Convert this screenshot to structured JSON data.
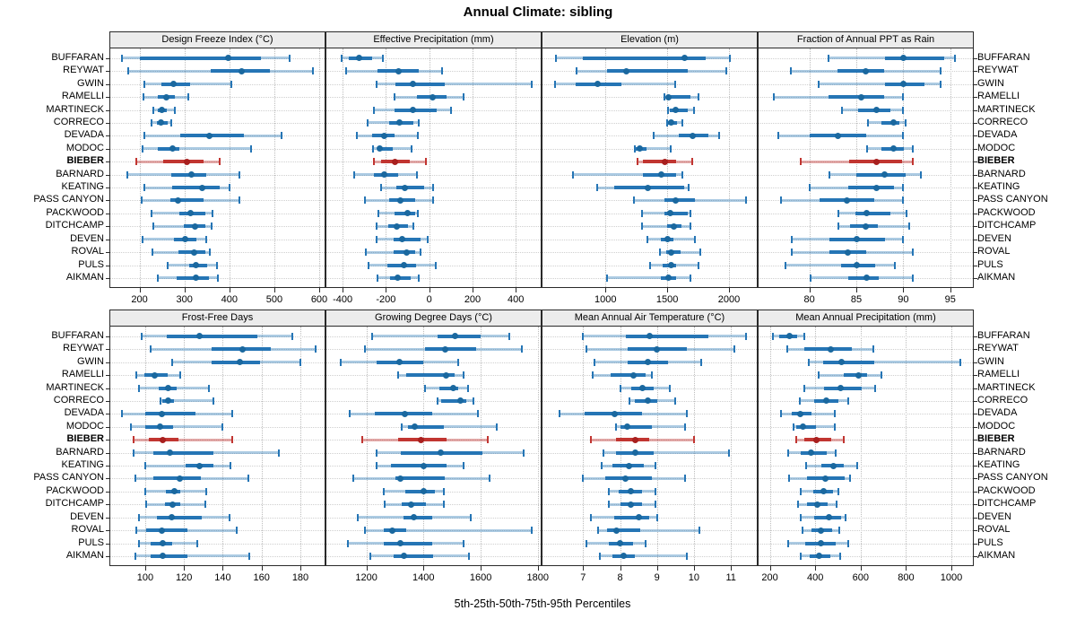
{
  "title": "Annual Climate: sibling",
  "caption": "5th-25th-50th-75th-95th Percentiles",
  "colors": {
    "series_box": "#2575b5",
    "series_dot": "#1a689f",
    "series_whisker": "rgba(37,117,181,0.38)",
    "highlight_box": "#c13531",
    "highlight_dot": "#a8201f",
    "highlight_whisker": "rgba(193,53,49,0.42)",
    "strip_bg": "#ececec",
    "grid": "#bdbdbd"
  },
  "sites": [
    "BUFFARAN",
    "REYWAT",
    "GWIN",
    "RAMELLI",
    "MARTINECK",
    "CORRECO",
    "DEVADA",
    "MODOC",
    "BIEBER",
    "BARNARD",
    "KEATING",
    "PASS CANYON",
    "PACKWOOD",
    "DITCHCAMP",
    "DEVEN",
    "ROVAL",
    "PULS",
    "AIKMAN"
  ],
  "highlight_site": "BIEBER",
  "chart_data": {
    "type": "percentile-dotplot",
    "percentiles": [
      5,
      25,
      50,
      75,
      95
    ],
    "layout_hint": "trellis 2 rows x 4 cols; shared site list on y; site labels left of col 1 and right of col 4; x axis below each panel row; dotted grid; BIEBER series highlighted red",
    "panels": [
      {
        "title": "Design Freeze Index (°C)",
        "row": 0,
        "col": 0,
        "ticks": [
          200,
          300,
          400,
          500,
          600
        ],
        "domain": [
          135,
          612
        ],
        "values": [
          [
            160,
            200,
            398,
            470,
            535
          ],
          [
            175,
            358,
            428,
            490,
            585
          ],
          [
            210,
            248,
            276,
            313,
            405
          ],
          [
            208,
            240,
            259,
            279,
            308
          ],
          [
            230,
            240,
            249,
            261,
            278
          ],
          [
            226,
            238,
            248,
            262,
            270
          ],
          [
            210,
            290,
            356,
            433,
            516
          ],
          [
            207,
            240,
            273,
            288,
            448
          ],
          [
            193,
            253,
            305,
            342,
            378
          ],
          [
            173,
            270,
            316,
            348,
            423
          ],
          [
            210,
            273,
            340,
            378,
            400
          ],
          [
            205,
            269,
            285,
            342,
            423
          ],
          [
            226,
            288,
            313,
            346,
            363
          ],
          [
            230,
            298,
            323,
            346,
            361
          ],
          [
            207,
            276,
            301,
            326,
            348
          ],
          [
            229,
            286,
            321,
            346,
            357
          ],
          [
            263,
            310,
            326,
            351,
            373
          ],
          [
            240,
            283,
            325,
            355,
            375
          ]
        ]
      },
      {
        "title": "Effective Precipitation (mm)",
        "row": 0,
        "col": 1,
        "ticks": [
          -400,
          -200,
          0,
          200,
          400
        ],
        "domain": [
          -475,
          515
        ],
        "values": [
          [
            -405,
            -370,
            -325,
            -265,
            -215
          ],
          [
            -385,
            -240,
            -140,
            -48,
            58
          ],
          [
            -245,
            -158,
            -75,
            70,
            474
          ],
          [
            -162,
            -55,
            16,
            82,
            157
          ],
          [
            -255,
            -160,
            -75,
            35,
            100
          ],
          [
            -283,
            -187,
            -138,
            -75,
            -48
          ],
          [
            -336,
            -265,
            -210,
            -158,
            -52
          ],
          [
            -258,
            -240,
            -230,
            -170,
            -82
          ],
          [
            -255,
            -224,
            -158,
            -89,
            -14
          ],
          [
            -347,
            -255,
            -210,
            -144,
            -55
          ],
          [
            -221,
            -152,
            -111,
            -25,
            19
          ],
          [
            -299,
            -187,
            -134,
            -66,
            16
          ],
          [
            -237,
            -162,
            -100,
            -66,
            -52
          ],
          [
            -244,
            -190,
            -152,
            -96,
            -75
          ],
          [
            -244,
            -166,
            -125,
            -38,
            -8
          ],
          [
            -293,
            -166,
            -104,
            -66,
            -41
          ],
          [
            -281,
            -194,
            -118,
            -59,
            30
          ],
          [
            -240,
            -183,
            -144,
            -86,
            -49
          ]
        ]
      },
      {
        "title": "Elevation (m)",
        "row": 0,
        "col": 2,
        "ticks": [
          1000,
          1500,
          2000
        ],
        "domain": [
          490,
          2225
        ],
        "values": [
          [
            600,
            815,
            1640,
            1810,
            2005
          ],
          [
            765,
            1015,
            1165,
            1670,
            1980
          ],
          [
            590,
            755,
            935,
            1125,
            1565
          ],
          [
            1475,
            1490,
            1510,
            1690,
            1750
          ],
          [
            1505,
            1520,
            1565,
            1665,
            1715
          ],
          [
            1500,
            1507,
            1532,
            1580,
            1622
          ],
          [
            1390,
            1592,
            1702,
            1836,
            1921
          ],
          [
            1237,
            1245,
            1277,
            1330,
            1525
          ],
          [
            1260,
            1300,
            1480,
            1570,
            1700
          ],
          [
            740,
            1300,
            1455,
            1575,
            1625
          ],
          [
            935,
            1070,
            1345,
            1640,
            1670
          ],
          [
            1230,
            1475,
            1565,
            1725,
            2140
          ],
          [
            1295,
            1475,
            1525,
            1665,
            1685
          ],
          [
            1295,
            1500,
            1555,
            1615,
            1685
          ],
          [
            1340,
            1450,
            1500,
            1550,
            1725
          ],
          [
            1440,
            1495,
            1530,
            1610,
            1770
          ],
          [
            1360,
            1463,
            1532,
            1570,
            1750
          ],
          [
            1010,
            1447,
            1512,
            1570,
            1690
          ]
        ]
      },
      {
        "title": "Fraction of Annual PPT as Rain",
        "row": 0,
        "col": 3,
        "ticks": [
          80,
          85,
          90,
          95
        ],
        "domain": [
          74.6,
          97.4
        ],
        "values": [
          [
            82,
            88,
            90,
            94.3,
            95.5
          ],
          [
            78,
            83,
            86,
            88,
            94
          ],
          [
            81,
            88,
            90,
            92.2,
            94
          ],
          [
            76.2,
            82,
            85.5,
            88,
            90
          ],
          [
            83.5,
            85.2,
            87.1,
            88.6,
            90
          ],
          [
            86.2,
            87.7,
            89,
            89.6,
            90.2
          ],
          [
            76.7,
            80,
            83,
            86.1,
            90
          ],
          [
            86.1,
            87.7,
            89,
            90.1,
            91
          ],
          [
            79.1,
            84.2,
            87.1,
            89.9,
            91
          ],
          [
            82.1,
            85,
            88,
            90.2,
            91.9
          ],
          [
            80,
            84.1,
            87.1,
            89,
            90
          ],
          [
            77,
            81.1,
            84,
            86.9,
            90
          ],
          [
            83.1,
            84.9,
            86.1,
            88.6,
            90.3
          ],
          [
            83.1,
            84.3,
            86,
            87.3,
            90.6
          ],
          [
            78.1,
            82.1,
            85,
            88.1,
            90
          ],
          [
            78.1,
            82.1,
            84.1,
            86.1,
            91
          ],
          [
            77.5,
            83.4,
            85,
            87,
            89.1
          ],
          [
            80.1,
            84.1,
            86.1,
            87.4,
            91
          ]
        ]
      },
      {
        "title": "Frost-Free Days",
        "row": 1,
        "col": 0,
        "ticks": [
          100,
          120,
          140,
          160,
          180
        ],
        "domain": [
          82,
          192.5
        ],
        "values": [
          [
            98,
            111,
            128,
            158,
            176
          ],
          [
            103,
            134,
            150,
            164.5,
            188
          ],
          [
            114,
            134,
            149,
            159,
            180
          ],
          [
            95.5,
            99.7,
            105,
            111.7,
            118
          ],
          [
            97,
            107,
            112,
            116,
            133
          ],
          [
            108,
            108.6,
            112,
            115,
            135
          ],
          [
            88,
            100,
            108.6,
            126,
            145
          ],
          [
            92.6,
            100,
            107.5,
            114.5,
            140
          ],
          [
            94,
            102,
            109,
            117,
            145
          ],
          [
            94,
            104,
            112.5,
            135,
            169
          ],
          [
            100,
            121,
            128,
            135,
            144
          ],
          [
            95,
            104,
            118,
            128.5,
            153
          ],
          [
            100,
            110.6,
            115,
            118,
            131.6
          ],
          [
            100.5,
            110,
            114,
            118,
            131
          ],
          [
            96.6,
            106,
            113.7,
            129,
            143.5
          ],
          [
            95.6,
            100.3,
            108.6,
            122,
            147
          ],
          [
            97,
            103,
            109,
            114,
            127
          ],
          [
            95,
            103,
            109,
            122,
            153.6
          ]
        ]
      },
      {
        "title": "Growing Degree Days (°C)",
        "row": 1,
        "col": 1,
        "ticks": [
          1200,
          1400,
          1600,
          1800
        ],
        "domain": [
          1060,
          1810
        ],
        "values": [
          [
            1220,
            1450,
            1510,
            1600,
            1700
          ],
          [
            1195,
            1405,
            1475,
            1585,
            1745
          ],
          [
            1110,
            1235,
            1315,
            1400,
            1520
          ],
          [
            1310,
            1340,
            1480,
            1510,
            1540
          ],
          [
            1405,
            1455,
            1505,
            1520,
            1555
          ],
          [
            1450,
            1460,
            1530,
            1550,
            1575
          ],
          [
            1140,
            1230,
            1335,
            1430,
            1590
          ],
          [
            1325,
            1345,
            1370,
            1470,
            1655
          ],
          [
            1185,
            1310,
            1390,
            1480,
            1625
          ],
          [
            1235,
            1320,
            1460,
            1605,
            1750
          ],
          [
            1235,
            1285,
            1400,
            1480,
            1540
          ],
          [
            1155,
            1300,
            1320,
            1475,
            1630
          ],
          [
            1260,
            1335,
            1400,
            1440,
            1470
          ],
          [
            1265,
            1325,
            1355,
            1410,
            1470
          ],
          [
            1170,
            1330,
            1365,
            1430,
            1565
          ],
          [
            1195,
            1260,
            1290,
            1340,
            1780
          ],
          [
            1135,
            1260,
            1320,
            1430,
            1540
          ],
          [
            1215,
            1295,
            1330,
            1435,
            1560
          ]
        ]
      },
      {
        "title": "Mean Annual Air Temperature (°C)",
        "row": 1,
        "col": 2,
        "ticks": [
          7,
          8,
          9,
          10,
          11
        ],
        "domain": [
          5.9,
          11.7
        ],
        "values": [
          [
            7.0,
            8.15,
            8.8,
            10.4,
            11.4
          ],
          [
            7.1,
            8.2,
            9.0,
            9.8,
            11.1
          ],
          [
            7.3,
            8.2,
            8.75,
            9.3,
            10.2
          ],
          [
            7.25,
            7.75,
            8.35,
            8.7,
            8.85
          ],
          [
            8.0,
            8.3,
            8.6,
            8.9,
            9.35
          ],
          [
            8.25,
            8.4,
            8.75,
            9.0,
            9.5
          ],
          [
            6.35,
            7.05,
            7.85,
            8.6,
            9.8
          ],
          [
            7.9,
            8.0,
            8.2,
            8.85,
            9.75
          ],
          [
            7.2,
            7.9,
            8.4,
            8.8,
            10.0
          ],
          [
            7.55,
            7.9,
            8.4,
            8.9,
            10.95
          ],
          [
            7.5,
            7.8,
            8.25,
            8.65,
            8.95
          ],
          [
            7.0,
            7.6,
            8.15,
            8.85,
            9.75
          ],
          [
            7.7,
            7.95,
            8.3,
            8.6,
            8.95
          ],
          [
            7.7,
            8.0,
            8.3,
            8.6,
            8.95
          ],
          [
            7.2,
            7.85,
            8.5,
            8.8,
            9.0
          ],
          [
            7.4,
            7.65,
            7.9,
            8.55,
            10.15
          ],
          [
            7.1,
            7.7,
            8.0,
            8.35,
            8.7
          ],
          [
            7.45,
            7.8,
            8.1,
            8.4,
            9.8
          ]
        ]
      },
      {
        "title": "Mean Annual Precipitation (mm)",
        "row": 1,
        "col": 3,
        "ticks": [
          200,
          400,
          600,
          800,
          1000
        ],
        "domain": [
          150,
          1095
        ],
        "values": [
          [
            215,
            240,
            285,
            320,
            350
          ],
          [
            275,
            350,
            470,
            560,
            655
          ],
          [
            370,
            435,
            515,
            660,
            1040
          ],
          [
            415,
            525,
            590,
            630,
            690
          ],
          [
            350,
            440,
            510,
            605,
            665
          ],
          [
            330,
            395,
            450,
            500,
            545
          ],
          [
            250,
            295,
            335,
            385,
            485
          ],
          [
            305,
            317,
            345,
            405,
            485
          ],
          [
            315,
            350,
            405,
            470,
            525
          ],
          [
            280,
            335,
            380,
            450,
            490
          ],
          [
            360,
            425,
            480,
            525,
            585
          ],
          [
            285,
            365,
            445,
            530,
            555
          ],
          [
            335,
            390,
            435,
            480,
            500
          ],
          [
            325,
            365,
            410,
            455,
            495
          ],
          [
            335,
            395,
            460,
            515,
            535
          ],
          [
            345,
            385,
            425,
            475,
            505
          ],
          [
            280,
            355,
            425,
            490,
            545
          ],
          [
            335,
            375,
            415,
            465,
            510
          ]
        ]
      }
    ]
  }
}
